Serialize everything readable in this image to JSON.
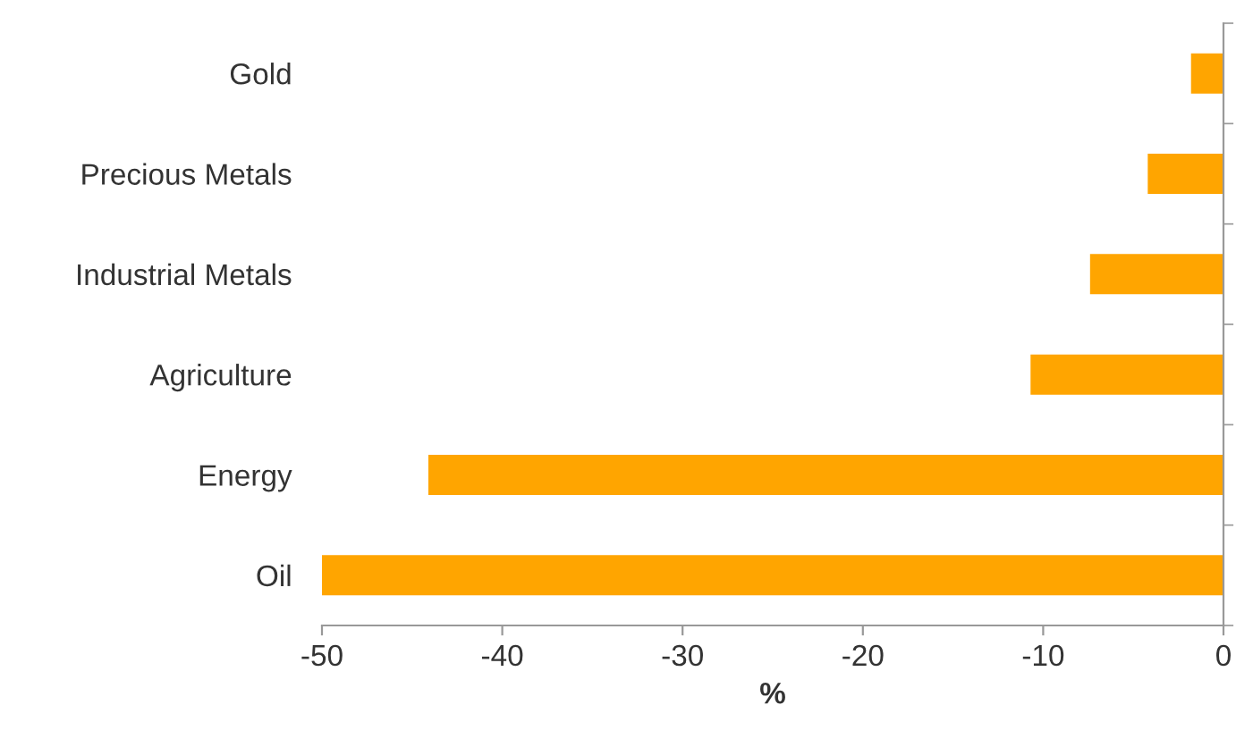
{
  "chart_data": {
    "type": "bar",
    "orientation": "horizontal",
    "xlabel": "%",
    "categories": [
      "Gold",
      "Precious Metals",
      "Industrial Metals",
      "Agriculture",
      "Energy",
      "Oil"
    ],
    "values": [
      -1.8,
      -4.2,
      -7.4,
      -10.7,
      -44.1,
      -50.0
    ],
    "color": "#ffa500",
    "xlim": [
      -50,
      0
    ],
    "xticks": [
      -50,
      -40,
      -30,
      -20,
      -10,
      0
    ],
    "grid": false,
    "legend": false
  }
}
